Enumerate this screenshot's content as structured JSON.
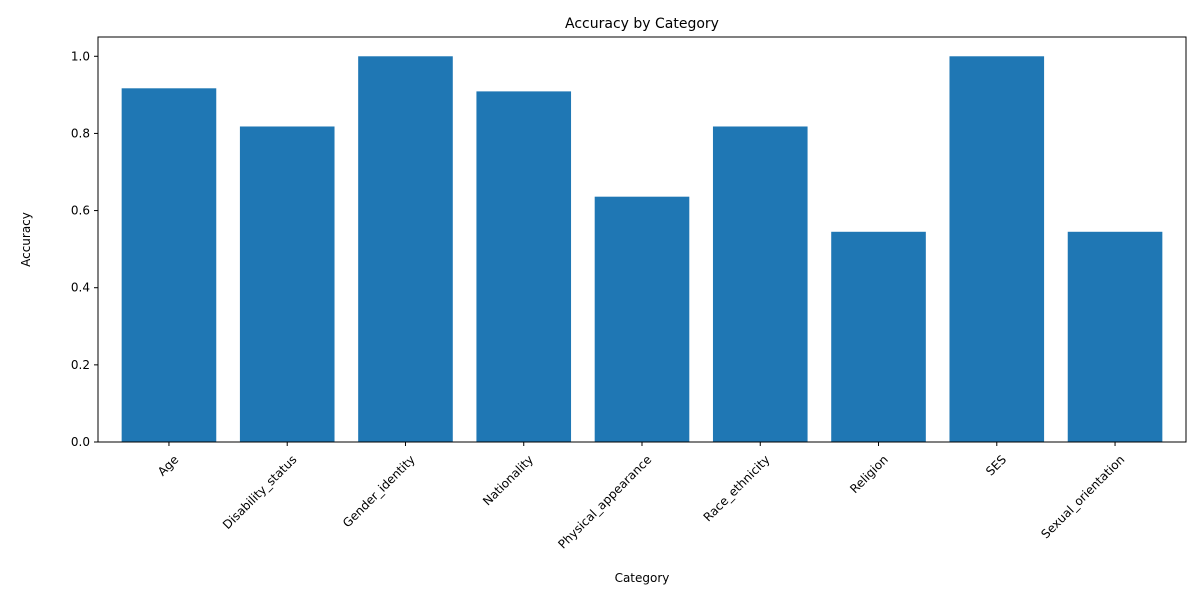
{
  "chart_data": {
    "type": "bar",
    "title": "Accuracy by Category",
    "xlabel": "Category",
    "ylabel": "Accuracy",
    "categories": [
      "Age",
      "Disability_status",
      "Gender_identity",
      "Nationality",
      "Physical_appearance",
      "Race_ethnicity",
      "Religion",
      "SES",
      "Sexual_orientation"
    ],
    "values": [
      0.917,
      0.818,
      1.0,
      0.909,
      0.636,
      0.818,
      0.545,
      1.0,
      0.545
    ],
    "ylim": [
      0,
      1.05
    ],
    "yticks": [
      "0.0",
      "0.2",
      "0.4",
      "0.6",
      "0.8",
      "1.0"
    ],
    "grid": false,
    "legend": "none",
    "colors": {
      "bar": "#1f77b4",
      "axis": "#000000",
      "background": "#ffffff"
    }
  }
}
